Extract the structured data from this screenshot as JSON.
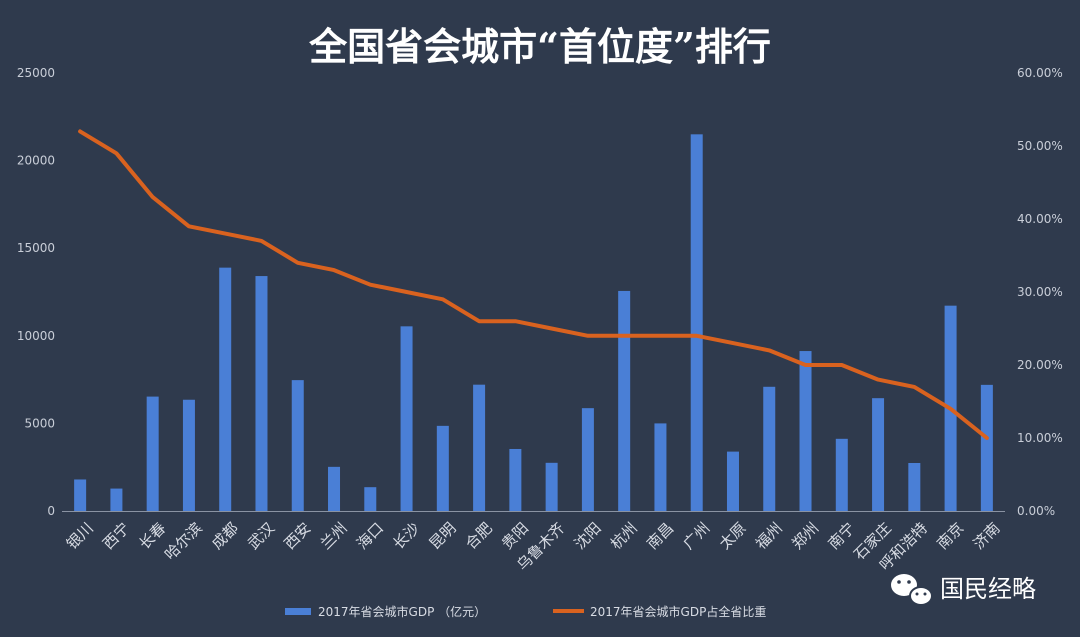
{
  "chart_data": {
    "type": "bar+line",
    "title": "全国省会城市“首位度”排行",
    "categories": [
      "银川",
      "西宁",
      "长春",
      "哈尔滨",
      "成都",
      "武汉",
      "西安",
      "兰州",
      "海口",
      "长沙",
      "昆明",
      "合肥",
      "贵阳",
      "乌鲁木齐",
      "沈阳",
      "杭州",
      "南昌",
      "广州",
      "太原",
      "福州",
      "郑州",
      "南宁",
      "石家庄",
      "呼和浩特",
      "南京",
      "济南"
    ],
    "series": [
      {
        "name": "2017年省会城市GDP （亿元）",
        "type": "bar",
        "axis": "left",
        "color": "#4a7fd6",
        "values": [
          1800,
          1280,
          6530,
          6350,
          13890,
          13410,
          7470,
          2520,
          1360,
          10540,
          4860,
          7210,
          3540,
          2750,
          5870,
          12560,
          5000,
          21500,
          3390,
          7090,
          9130,
          4120,
          6440,
          2740,
          11720,
          7200
        ]
      },
      {
        "name": "2017年省会城市GDP占全省比重",
        "type": "line",
        "axis": "right",
        "color": "#d9621f",
        "values": [
          0.52,
          0.49,
          0.43,
          0.39,
          0.38,
          0.37,
          0.34,
          0.33,
          0.31,
          0.3,
          0.29,
          0.26,
          0.26,
          0.25,
          0.24,
          0.24,
          0.24,
          0.24,
          0.23,
          0.22,
          0.2,
          0.2,
          0.18,
          0.17,
          0.14,
          0.1
        ]
      }
    ],
    "y_left": {
      "min": 0,
      "max": 25000,
      "ticks": [
        "0",
        "5000",
        "10000",
        "15000",
        "20000",
        "25000"
      ]
    },
    "y_right": {
      "min": 0,
      "max": 0.6,
      "ticks": [
        "0.00%",
        "10.00%",
        "20.00%",
        "30.00%",
        "40.00%",
        "50.00%",
        "60.00%"
      ]
    },
    "grid": false,
    "legend_position": "bottom"
  },
  "watermark": {
    "text": "国民经略",
    "icon": "wechat-icon"
  }
}
